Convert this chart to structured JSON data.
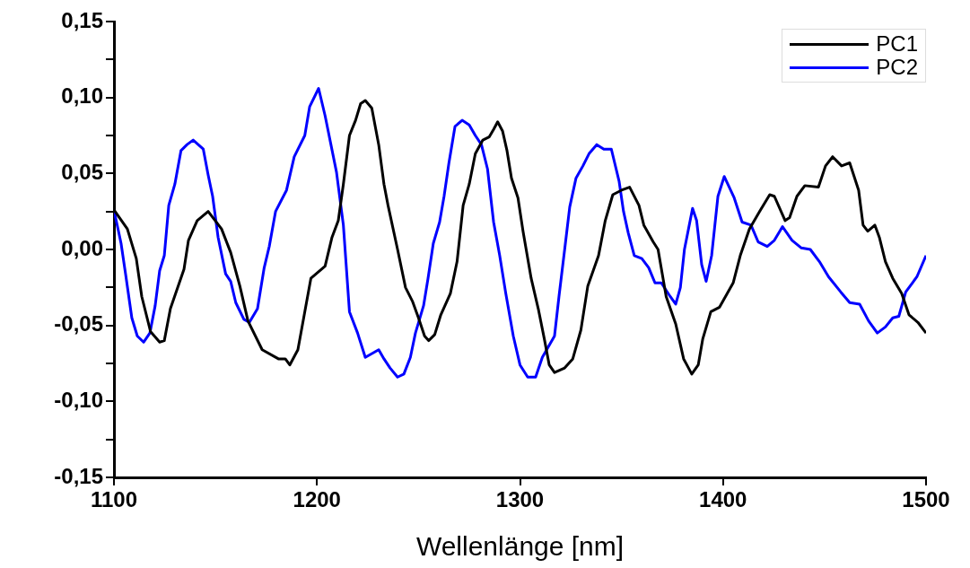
{
  "chart_data": {
    "type": "line",
    "xlabel": "Wellenlänge [nm]",
    "legend": "top right",
    "grid": false,
    "xlim": [
      1100,
      1500
    ],
    "xticks": [
      1100,
      1200,
      1300,
      1400,
      1500
    ],
    "ylim": [
      -0.15,
      0.15
    ],
    "yticks": [
      {
        "value": -0.15,
        "label": "-0,15"
      },
      {
        "value": -0.125,
        "label": null
      },
      {
        "value": -0.1,
        "label": "-0,10"
      },
      {
        "value": -0.075,
        "label": null
      },
      {
        "value": -0.05,
        "label": "-0,05"
      },
      {
        "value": -0.025,
        "label": null
      },
      {
        "value": 0,
        "label": "0,00"
      },
      {
        "value": 0.025,
        "label": null
      },
      {
        "value": 0.05,
        "label": "0,05"
      },
      {
        "value": 0.075,
        "label": null
      },
      {
        "value": 0.1,
        "label": "0,10"
      },
      {
        "value": 0.125,
        "label": null
      },
      {
        "value": 0.15,
        "label": "0,15"
      }
    ],
    "series": [
      {
        "name": "PC1",
        "color": "#000000",
        "x": [
          1100,
          1106.6,
          1111,
          1113.7,
          1118,
          1122.5,
          1124.8,
          1127.8,
          1134.5,
          1136.7,
          1141,
          1146.4,
          1153,
          1157.5,
          1162,
          1166,
          1173,
          1181,
          1184.4,
          1186.6,
          1190.6,
          1194,
          1197,
          1204,
          1207.4,
          1210.5,
          1213,
          1216,
          1219,
          1221.5,
          1223.8,
          1227,
          1230.4,
          1233,
          1235,
          1239.7,
          1243.6,
          1247,
          1250,
          1253,
          1255,
          1258,
          1261,
          1265.7,
          1269,
          1272,
          1275,
          1278,
          1281.7,
          1284.8,
          1287,
          1289,
          1291.4,
          1293.6,
          1295.8,
          1299,
          1301.5,
          1305.5,
          1309,
          1312,
          1314.4,
          1317,
          1322,
          1326,
          1330,
          1333.4,
          1338.7,
          1342,
          1345.7,
          1350,
          1354,
          1358.6,
          1361,
          1365.6,
          1368,
          1372,
          1376.7,
          1380.6,
          1384.6,
          1387.8,
          1390,
          1394,
          1398.3,
          1405,
          1408.5,
          1413,
          1418,
          1423,
          1425.3,
          1430.6,
          1432.8,
          1436.4,
          1440.3,
          1447,
          1450.5,
          1454,
          1458.4,
          1462.4,
          1466.8,
          1469,
          1471.3,
          1474.8,
          1477,
          1480,
          1483.6,
          1488,
          1491.6,
          1496,
          1500
        ],
        "values": [
          0.026,
          0.0135,
          -0.006,
          -0.031,
          -0.054,
          -0.061,
          -0.06,
          -0.039,
          -0.013,
          0.006,
          0.019,
          0.025,
          0.0135,
          -0.002,
          -0.024,
          -0.047,
          -0.066,
          -0.072,
          -0.072,
          -0.076,
          -0.066,
          -0.041,
          -0.019,
          -0.011,
          0.008,
          0.019,
          0.043,
          0.075,
          0.085,
          0.096,
          0.098,
          0.093,
          0.069,
          0.043,
          0.029,
          0.0,
          -0.025,
          -0.034,
          -0.045,
          -0.057,
          -0.06,
          -0.056,
          -0.043,
          -0.029,
          -0.008,
          0.029,
          0.043,
          0.063,
          0.072,
          0.074,
          0.079,
          0.084,
          0.078,
          0.065,
          0.047,
          0.034,
          0.012,
          -0.019,
          -0.039,
          -0.059,
          -0.076,
          -0.081,
          -0.078,
          -0.072,
          -0.053,
          -0.024,
          -0.004,
          0.019,
          0.036,
          0.039,
          0.041,
          0.029,
          0.016,
          0.005,
          0.0,
          -0.031,
          -0.049,
          -0.072,
          -0.082,
          -0.076,
          -0.059,
          -0.041,
          -0.038,
          -0.022,
          -0.004,
          0.0135,
          0.025,
          0.036,
          0.035,
          0.019,
          0.021,
          0.035,
          0.042,
          0.041,
          0.055,
          0.061,
          0.055,
          0.057,
          0.039,
          0.016,
          0.012,
          0.016,
          0.008,
          -0.008,
          -0.019,
          -0.029,
          -0.043,
          -0.048,
          -0.055
        ]
      },
      {
        "name": "PC2",
        "color": "#0000ff",
        "x": [
          1100,
          1103.5,
          1105.7,
          1108.8,
          1111.5,
          1114.6,
          1117.7,
          1120.3,
          1122.5,
          1124.8,
          1127,
          1130,
          1133,
          1136,
          1139,
          1144,
          1146.4,
          1148.6,
          1151.3,
          1155,
          1157.5,
          1160,
          1164,
          1166.7,
          1170.7,
          1174,
          1176.5,
          1179.6,
          1185,
          1188.8,
          1194,
          1196.4,
          1200.8,
          1204,
          1209.6,
          1213,
          1216,
          1220,
          1223.8,
          1230.4,
          1233,
          1236,
          1239.7,
          1242.8,
          1246,
          1248.5,
          1252.5,
          1254.7,
          1257.3,
          1260.4,
          1262.6,
          1265,
          1268,
          1271.5,
          1275,
          1278,
          1281,
          1284,
          1287,
          1290,
          1293,
          1296.7,
          1300,
          1303.8,
          1307.7,
          1311,
          1314.4,
          1317,
          1319.2,
          1322,
          1324.5,
          1327.6,
          1331,
          1334,
          1337.8,
          1341.3,
          1345,
          1348.8,
          1351,
          1353.3,
          1356.3,
          1360,
          1363.4,
          1366.5,
          1369.6,
          1374,
          1376.7,
          1379,
          1381,
          1385,
          1387,
          1389.5,
          1391.7,
          1394.4,
          1397.5,
          1400.6,
          1405.5,
          1409.4,
          1413.8,
          1417.3,
          1421.8,
          1425.3,
          1429.3,
          1434,
          1438.6,
          1443,
          1447.5,
          1452,
          1458,
          1462.4,
          1467.3,
          1471.7,
          1476,
          1480,
          1483.6,
          1486.6,
          1490,
          1495.5,
          1500
        ],
        "values": [
          0.026,
          0.004,
          -0.016,
          -0.045,
          -0.057,
          -0.061,
          -0.055,
          -0.037,
          -0.014,
          -0.004,
          0.029,
          0.043,
          0.065,
          0.069,
          0.072,
          0.066,
          0.049,
          0.035,
          0.008,
          -0.016,
          -0.021,
          -0.035,
          -0.046,
          -0.048,
          -0.039,
          -0.012,
          0.002,
          0.025,
          0.039,
          0.061,
          0.075,
          0.094,
          0.106,
          0.088,
          0.051,
          0.016,
          -0.041,
          -0.055,
          -0.071,
          -0.066,
          -0.072,
          -0.078,
          -0.084,
          -0.082,
          -0.071,
          -0.055,
          -0.037,
          -0.019,
          0.004,
          0.018,
          0.035,
          0.057,
          0.081,
          0.085,
          0.082,
          0.075,
          0.069,
          0.053,
          0.018,
          -0.004,
          -0.029,
          -0.057,
          -0.076,
          -0.084,
          -0.084,
          -0.071,
          -0.063,
          -0.057,
          -0.031,
          0.0,
          0.028,
          0.047,
          0.055,
          0.063,
          0.069,
          0.066,
          0.066,
          0.045,
          0.025,
          0.011,
          -0.004,
          -0.006,
          -0.012,
          -0.022,
          -0.022,
          -0.031,
          -0.036,
          -0.025,
          0.0,
          0.027,
          0.019,
          -0.01,
          -0.021,
          -0.004,
          0.035,
          0.048,
          0.034,
          0.018,
          0.016,
          0.005,
          0.002,
          0.006,
          0.015,
          0.006,
          0.001,
          0.0,
          -0.008,
          -0.018,
          -0.028,
          -0.035,
          -0.036,
          -0.047,
          -0.055,
          -0.051,
          -0.045,
          -0.044,
          -0.028,
          -0.018,
          -0.004
        ]
      }
    ]
  }
}
